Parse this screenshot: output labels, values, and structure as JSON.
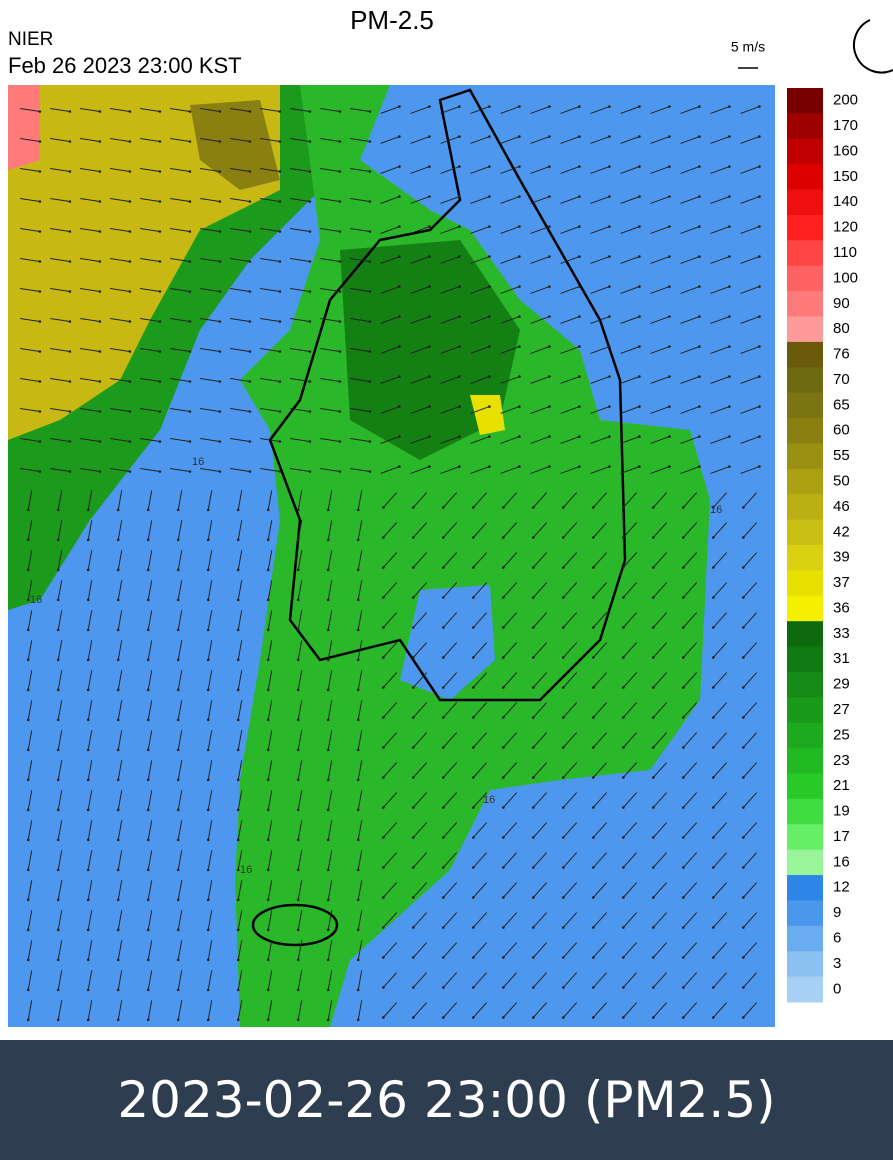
{
  "header": {
    "title": "PM-2.5",
    "source": "NIER",
    "datetime": "Feb 26 2023 23:00 KST",
    "wind_scale": "5 m/s"
  },
  "map": {
    "contour_labels": [
      "16",
      "16",
      "16",
      "16",
      "16"
    ]
  },
  "colorbar": {
    "levels": [
      200,
      170,
      160,
      150,
      140,
      120,
      110,
      100,
      90,
      80,
      76,
      70,
      65,
      60,
      55,
      50,
      46,
      42,
      39,
      37,
      36,
      33,
      31,
      29,
      27,
      25,
      23,
      21,
      19,
      17,
      16,
      12,
      9,
      6,
      3,
      0
    ],
    "colors": [
      "#7a0000",
      "#9e0000",
      "#c00000",
      "#dd0000",
      "#ee1010",
      "#ff2020",
      "#ff4444",
      "#ff6262",
      "#ff7a7a",
      "#ff9a9a",
      "#6b5a0c",
      "#6e6a10",
      "#7a7512",
      "#8a8012",
      "#9a9012",
      "#aaa012",
      "#bab014",
      "#cac014",
      "#dad012",
      "#e8e000",
      "#f5f000",
      "#0e6a0e",
      "#127a12",
      "#168a16",
      "#1a9a1a",
      "#1eaa1e",
      "#22ba22",
      "#28ca28",
      "#40dd40",
      "#66ee66",
      "#99f599",
      "#2e86e8",
      "#4a98ec",
      "#6aacf0",
      "#8ac0f2",
      "#a8d0f4"
    ]
  },
  "footer": {
    "caption": "2023-02-26 23:00  (PM2.5)"
  }
}
